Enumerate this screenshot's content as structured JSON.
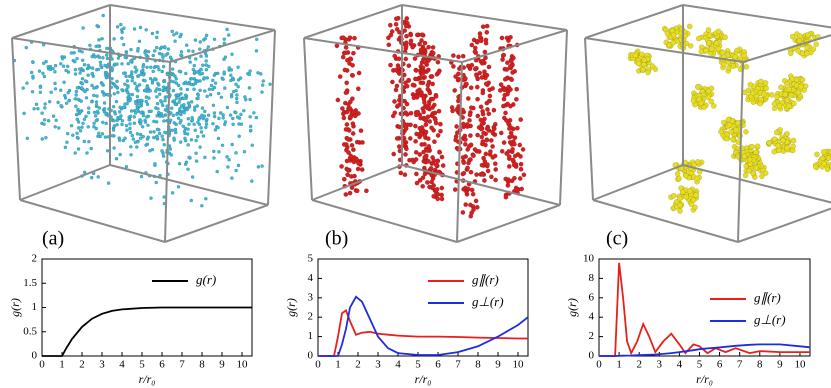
{
  "panel_labels": [
    "(a)",
    "(b)",
    "(c)"
  ],
  "chart_data": [
    {
      "type": "line",
      "xlabel": "r/r₀",
      "ylabel": "g(r)",
      "x": [
        0,
        1,
        1.2,
        1.5,
        2,
        2.5,
        3,
        3.5,
        4,
        5,
        6,
        7,
        8,
        9,
        10,
        10.5
      ],
      "series": [
        {
          "name": "g(r)",
          "color": "#000000",
          "values": [
            0,
            0,
            0.15,
            0.35,
            0.6,
            0.77,
            0.87,
            0.93,
            0.96,
            0.99,
            1.0,
            1.0,
            1.0,
            1.0,
            1.0,
            1.0
          ]
        }
      ],
      "xlim": [
        0,
        10.5
      ],
      "xticks": [
        0,
        1,
        2,
        3,
        4,
        5,
        6,
        7,
        8,
        9,
        10
      ],
      "ylim": [
        0,
        2
      ],
      "yticks": [
        0,
        0.5,
        1,
        1.5,
        2
      ],
      "legend": "upper right"
    },
    {
      "type": "line",
      "xlabel": "r/r₀",
      "ylabel": "g(r)",
      "x": [
        0,
        0.8,
        1,
        1.2,
        1.4,
        1.6,
        1.9,
        2.2,
        2.6,
        3,
        3.5,
        4,
        5,
        6,
        7,
        8,
        9,
        10,
        10.5
      ],
      "series": [
        {
          "name": "g∥(r)",
          "color": "#e8201c",
          "values": [
            0,
            0,
            1.0,
            2.2,
            2.35,
            1.8,
            1.1,
            1.2,
            1.25,
            1.15,
            1.1,
            1.05,
            1.0,
            1.0,
            0.98,
            0.95,
            0.93,
            0.9,
            0.9
          ]
        },
        {
          "name": "g⊥(r)",
          "color": "#1c2ee0",
          "values": [
            0,
            0,
            0,
            0.6,
            1.4,
            2.5,
            3.05,
            2.8,
            1.9,
            1.0,
            0.4,
            0.15,
            0.05,
            0.05,
            0.2,
            0.5,
            1.0,
            1.6,
            2.0
          ]
        }
      ],
      "xlim": [
        0,
        10.5
      ],
      "xticks": [
        0,
        1,
        2,
        3,
        4,
        5,
        6,
        7,
        8,
        9,
        10
      ],
      "ylim": [
        0,
        5
      ],
      "yticks": [
        0,
        1,
        2,
        3,
        4,
        5
      ],
      "legend": "upper right"
    },
    {
      "type": "line",
      "xlabel": "r/r₀",
      "ylabel": "g(r)",
      "x": [
        0,
        0.8,
        1,
        1.2,
        1.4,
        1.6,
        1.9,
        2.2,
        2.5,
        2.8,
        3.2,
        3.6,
        4,
        4.3,
        4.7,
        5,
        5.4,
        5.8,
        6.3,
        6.8,
        7.5,
        8,
        9,
        10,
        10.5
      ],
      "series": [
        {
          "name": "g∥(r)",
          "color": "#e8201c",
          "values": [
            0,
            0,
            9.6,
            6,
            1.5,
            0.3,
            1.5,
            3.3,
            2,
            0.4,
            1.5,
            2.3,
            1.2,
            0.3,
            1.2,
            1.0,
            0.3,
            0.8,
            0.4,
            0.8,
            0.3,
            0.5,
            0.4,
            0.4,
            0.4
          ]
        },
        {
          "name": "g⊥(r)",
          "color": "#1c2ee0",
          "values": [
            0,
            0,
            0.02,
            0.03,
            0.04,
            0.05,
            0.08,
            0.1,
            0.12,
            0.15,
            0.22,
            0.3,
            0.4,
            0.48,
            0.6,
            0.7,
            0.78,
            0.85,
            0.95,
            1.05,
            1.15,
            1.2,
            1.2,
            1.0,
            0.9
          ]
        }
      ],
      "xlim": [
        0,
        10.5
      ],
      "xticks": [
        0,
        1,
        2,
        3,
        4,
        5,
        6,
        7,
        8,
        9,
        10
      ],
      "ylim": [
        0,
        10
      ],
      "yticks": [
        0,
        2,
        4,
        6,
        8,
        10
      ],
      "legend": "center right"
    }
  ]
}
